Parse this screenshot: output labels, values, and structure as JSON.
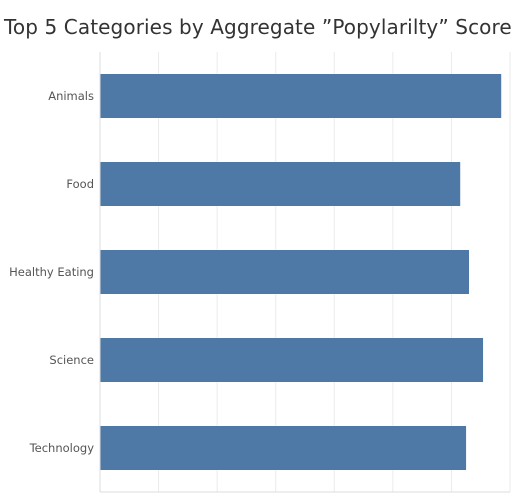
{
  "chart_data": {
    "type": "bar",
    "orientation": "horizontal",
    "title": "Top 5 Categories by Aggregate ”Popylarilty” Score",
    "xlabel": "",
    "ylabel": "",
    "categories": [
      "Animals",
      "Food",
      "Healthy Eating",
      "Science",
      "Technology"
    ],
    "values": [
      68.5,
      61.5,
      63.0,
      65.4,
      62.5
    ],
    "xlim": [
      0,
      70
    ],
    "grid": true,
    "legend": "none",
    "colors": {
      "bar": "#4e79a7",
      "grid": "#ebebeb",
      "axis": "#dcdcdc"
    }
  }
}
